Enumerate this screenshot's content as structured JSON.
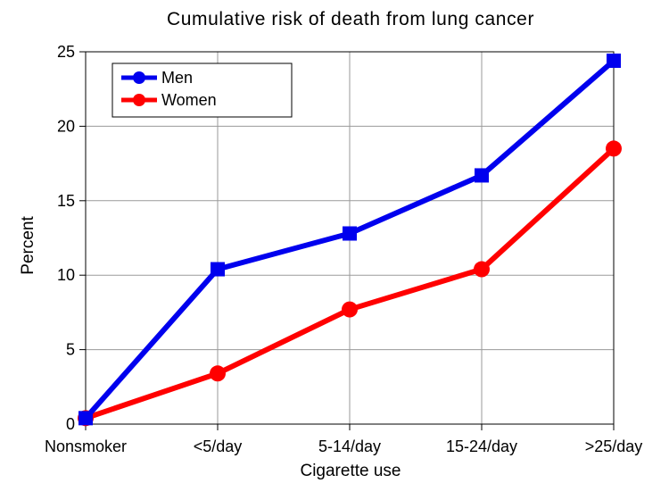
{
  "chart_data": {
    "type": "line",
    "title": "Cumulative risk of death from lung cancer",
    "xlabel": "Cigarette use",
    "ylabel": "Percent",
    "categories": [
      "Nonsmoker",
      "<5/day",
      "5-14/day",
      "15-24/day",
      ">25/day"
    ],
    "y_ticks": [
      "0",
      "5",
      "10",
      "15",
      "20",
      "25"
    ],
    "ylim": [
      0,
      25
    ],
    "grid": true,
    "legend_position": "top-left",
    "series": [
      {
        "name": "Men",
        "color": "#0000ee",
        "marker": "square",
        "values": [
          0.4,
          10.4,
          12.8,
          16.7,
          24.4
        ]
      },
      {
        "name": "Women",
        "color": "#ff0000",
        "marker": "circle",
        "values": [
          0.4,
          3.4,
          7.7,
          10.4,
          18.5
        ]
      }
    ]
  }
}
